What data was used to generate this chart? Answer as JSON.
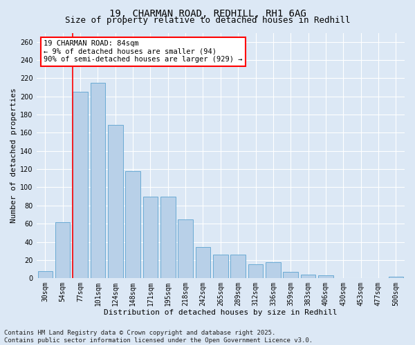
{
  "title_line1": "19, CHARMAN ROAD, REDHILL, RH1 6AG",
  "title_line2": "Size of property relative to detached houses in Redhill",
  "xlabel": "Distribution of detached houses by size in Redhill",
  "ylabel": "Number of detached properties",
  "categories": [
    "30sqm",
    "54sqm",
    "77sqm",
    "101sqm",
    "124sqm",
    "148sqm",
    "171sqm",
    "195sqm",
    "218sqm",
    "242sqm",
    "265sqm",
    "289sqm",
    "312sqm",
    "336sqm",
    "359sqm",
    "383sqm",
    "406sqm",
    "430sqm",
    "453sqm",
    "477sqm",
    "500sqm"
  ],
  "values": [
    8,
    62,
    205,
    215,
    169,
    118,
    90,
    90,
    65,
    34,
    26,
    26,
    15,
    18,
    7,
    4,
    3,
    0,
    0,
    0,
    2
  ],
  "bar_color": "#b8d0e8",
  "bar_edgecolor": "#6aaad4",
  "ylim": [
    0,
    270
  ],
  "yticks": [
    0,
    20,
    40,
    60,
    80,
    100,
    120,
    140,
    160,
    180,
    200,
    220,
    240,
    260
  ],
  "redline_bin_index": 2,
  "annotation_title": "19 CHARMAN ROAD: 84sqm",
  "annotation_line2": "← 9% of detached houses are smaller (94)",
  "annotation_line3": "90% of semi-detached houses are larger (929) →",
  "background_color": "#dce8f5",
  "footer_line1": "Contains HM Land Registry data © Crown copyright and database right 2025.",
  "footer_line2": "Contains public sector information licensed under the Open Government Licence v3.0.",
  "title_fontsize": 10,
  "subtitle_fontsize": 9,
  "axis_label_fontsize": 8,
  "tick_fontsize": 7,
  "annotation_fontsize": 7.5,
  "footer_fontsize": 6.5
}
